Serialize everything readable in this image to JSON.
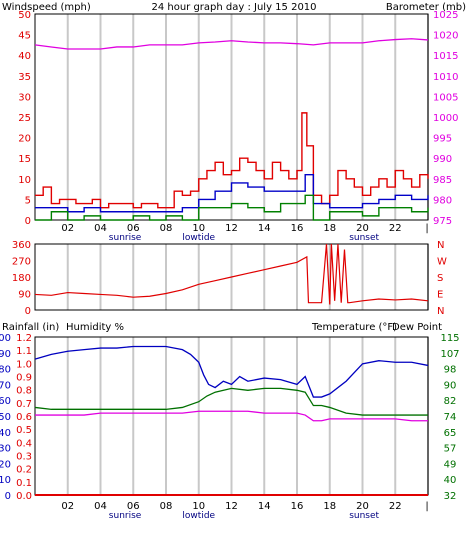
{
  "title": "24 hour graph day : July 15 2010",
  "events": [
    {
      "label": "sunrise",
      "hour": 5.5
    },
    {
      "label": "lowtide",
      "hour": 10.0
    },
    {
      "label": "sunset",
      "hour": 20.1
    }
  ],
  "colors": {
    "windspeed": "#e00000",
    "windavg": "#0000c8",
    "windgreen": "#008000",
    "barometer": "#e000e0",
    "humidity": "#0000c0",
    "temperature": "#007000",
    "dewpoint": "#e000e0",
    "rainfall": "#e00000",
    "grid": "#c8c8c8",
    "frame": "#000000"
  },
  "chart_data": [
    {
      "type": "line",
      "name": "wind-barometer",
      "left_axis_label": "Windspeed (mph)",
      "right_axis_label": "Barometer (mb)",
      "x_ticks": [
        "02",
        "04",
        "06",
        "08",
        "10",
        "12",
        "14",
        "16",
        "18",
        "20",
        "22",
        "|"
      ],
      "left_ticks": [
        "0",
        "5",
        "10",
        "15",
        "20",
        "25",
        "30",
        "35",
        "40",
        "45",
        "50"
      ],
      "right_ticks": [
        "975",
        "980",
        "985",
        "990",
        "995",
        "1000",
        "1005",
        "1010",
        "1015",
        "1020",
        "1025"
      ],
      "xlim": [
        0,
        24
      ],
      "ylim_left": [
        0,
        50
      ],
      "ylim_right": [
        975,
        1025
      ],
      "series": [
        {
          "key": "wind_gust",
          "axis": "left",
          "x": [
            0,
            0.5,
            1,
            1.5,
            2,
            2.5,
            3,
            3.5,
            4,
            4.5,
            5,
            5.5,
            6,
            6.5,
            7,
            7.5,
            8,
            8.5,
            9,
            9.5,
            10,
            10.5,
            11,
            11.5,
            12,
            12.5,
            13,
            13.5,
            14,
            14.5,
            15,
            15.5,
            16,
            16.3,
            16.6,
            17,
            17.5,
            18,
            18.5,
            19,
            19.5,
            20,
            20.5,
            21,
            21.5,
            22,
            22.5,
            23,
            23.5,
            24
          ],
          "y": [
            6,
            8,
            4,
            5,
            5,
            4,
            4,
            5,
            3,
            4,
            4,
            4,
            3,
            4,
            4,
            3,
            3,
            7,
            6,
            7,
            10,
            12,
            14,
            11,
            12,
            15,
            14,
            12,
            10,
            14,
            12,
            10,
            12,
            26,
            18,
            6,
            4,
            6,
            12,
            10,
            8,
            6,
            8,
            10,
            8,
            12,
            10,
            8,
            11,
            10
          ]
        },
        {
          "key": "wind_avg",
          "axis": "left",
          "x": [
            0,
            1,
            2,
            3,
            4,
            5,
            6,
            7,
            8,
            9,
            10,
            11,
            12,
            13,
            14,
            15,
            16,
            16.5,
            17,
            18,
            19,
            20,
            21,
            22,
            23,
            24
          ],
          "y": [
            3,
            3,
            2,
            3,
            2,
            2,
            2,
            2,
            2,
            3,
            5,
            7,
            9,
            8,
            7,
            7,
            7,
            11,
            4,
            3,
            3,
            4,
            5,
            6,
            5,
            6
          ]
        },
        {
          "key": "wind_min",
          "axis": "left",
          "x": [
            0,
            1,
            2,
            3,
            4,
            5,
            6,
            7,
            8,
            9,
            10,
            11,
            12,
            13,
            14,
            15,
            16,
            16.5,
            17,
            18,
            19,
            20,
            21,
            22,
            23,
            24
          ],
          "y": [
            0,
            2,
            0,
            1,
            0,
            0,
            1,
            0,
            1,
            0,
            3,
            3,
            4,
            3,
            2,
            4,
            4,
            6,
            0,
            2,
            2,
            1,
            3,
            3,
            2,
            3
          ]
        },
        {
          "key": "barometer",
          "axis": "right",
          "x": [
            0,
            1,
            2,
            3,
            4,
            5,
            6,
            7,
            8,
            9,
            10,
            11,
            12,
            13,
            14,
            15,
            16,
            17,
            18,
            19,
            20,
            21,
            22,
            23,
            24
          ],
          "y": [
            1017.5,
            1017,
            1016.5,
            1016.5,
            1016.5,
            1017,
            1017,
            1017.5,
            1017.5,
            1017.5,
            1018,
            1018.2,
            1018.5,
            1018.2,
            1018,
            1018,
            1017.8,
            1017.5,
            1018,
            1018,
            1018,
            1018.5,
            1018.8,
            1019,
            1018.7
          ]
        }
      ]
    },
    {
      "type": "line",
      "name": "wind-direction",
      "left_ticks": [
        "0",
        "90",
        "180",
        "270",
        "360"
      ],
      "right_ticks": [
        "N",
        "E",
        "S",
        "W",
        "N"
      ],
      "xlim": [
        0,
        24
      ],
      "ylim_left": [
        0,
        360
      ],
      "series": [
        {
          "key": "direction",
          "axis": "left",
          "x": [
            0,
            1,
            2,
            3,
            4,
            5,
            6,
            7,
            8,
            9,
            10,
            11,
            12,
            13,
            14,
            15,
            16,
            16.6,
            16.7,
            17,
            17.5,
            17.8,
            18,
            18.1,
            18.3,
            18.5,
            18.7,
            18.9,
            19.1,
            19.2,
            20,
            21,
            22,
            23,
            24
          ],
          "y": [
            85,
            80,
            95,
            90,
            85,
            80,
            70,
            75,
            90,
            110,
            140,
            160,
            180,
            200,
            220,
            240,
            260,
            290,
            40,
            40,
            40,
            360,
            30,
            360,
            50,
            360,
            40,
            330,
            40,
            40,
            50,
            60,
            55,
            60,
            50
          ]
        }
      ]
    },
    {
      "type": "line",
      "name": "humidity-temperature",
      "left_axis_label": "Rainfall (in)",
      "left2_axis_label": "Humidity %",
      "right_axis_label": "Temperature (°F)",
      "right2_axis_label": "Dew Point",
      "x_ticks": [
        "02",
        "04",
        "06",
        "08",
        "10",
        "12",
        "14",
        "16",
        "18",
        "20",
        "22",
        "|"
      ],
      "rain_ticks": [
        "0.0",
        "0.1",
        "0.2",
        "0.3",
        "0.4",
        "0.5",
        "0.6",
        "0.7",
        "0.8",
        "0.9",
        "1.0",
        "1.1",
        "1.2"
      ],
      "humidity_ticks": [
        "0",
        "10",
        "20",
        "30",
        "40",
        "50",
        "60",
        "70",
        "80",
        "90",
        "100"
      ],
      "temp_ticks": [
        "32",
        "40",
        "49",
        "57",
        "65",
        "74",
        "82",
        "90",
        "98",
        "107",
        "115"
      ],
      "xlim": [
        0,
        24
      ],
      "ylim_humidity": [
        0,
        100
      ],
      "ylim_temp": [
        32,
        115
      ],
      "series": [
        {
          "key": "humidity",
          "axis": "humidity",
          "x": [
            0,
            1,
            2,
            3,
            4,
            5,
            6,
            7,
            8,
            9,
            9.5,
            10,
            10.3,
            10.6,
            11,
            11.5,
            12,
            12.5,
            13,
            14,
            15,
            16,
            16.5,
            17,
            17.5,
            18,
            19,
            20,
            21,
            22,
            23,
            24
          ],
          "y": [
            86,
            89,
            91,
            92,
            93,
            93,
            94,
            94,
            94,
            92,
            89,
            84,
            76,
            70,
            68,
            72,
            70,
            75,
            72,
            74,
            73,
            70,
            75,
            62,
            62,
            64,
            72,
            83,
            85,
            84,
            84,
            82
          ]
        },
        {
          "key": "temperature",
          "axis": "temp",
          "x": [
            0,
            1,
            2,
            3,
            4,
            5,
            6,
            7,
            8,
            9,
            10,
            10.5,
            11,
            12,
            13,
            14,
            15,
            16,
            16.5,
            17,
            17.5,
            18,
            19,
            20,
            21,
            22,
            23,
            24
          ],
          "y": [
            78,
            77,
            77,
            77,
            77,
            77,
            77,
            77,
            77,
            78,
            81,
            84,
            86,
            88,
            87,
            88,
            88,
            87,
            86,
            79,
            79,
            78,
            75,
            74,
            74,
            74,
            74,
            74
          ]
        },
        {
          "key": "dewpoint",
          "axis": "temp",
          "x": [
            0,
            1,
            2,
            3,
            4,
            5,
            6,
            7,
            8,
            9,
            10,
            11,
            12,
            13,
            14,
            15,
            16,
            16.5,
            17,
            17.5,
            18,
            19,
            20,
            21,
            22,
            23,
            24
          ],
          "y": [
            74,
            74,
            74,
            74,
            75,
            75,
            75,
            75,
            75,
            75,
            76,
            76,
            76,
            76,
            75,
            75,
            75,
            74,
            71,
            71,
            72,
            72,
            72,
            72,
            72,
            71,
            71
          ]
        },
        {
          "key": "rainfall",
          "axis": "rain",
          "x": [
            0,
            24
          ],
          "y": [
            0,
            0
          ]
        }
      ]
    }
  ]
}
